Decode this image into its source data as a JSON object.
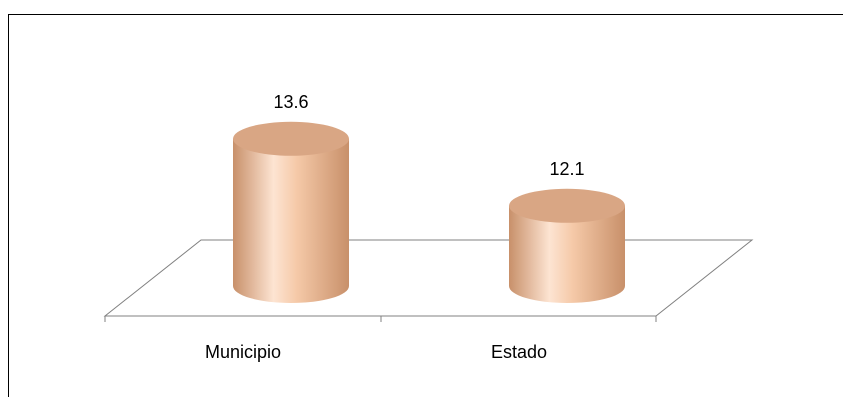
{
  "chart_data": {
    "type": "bar",
    "style": "3d-cylinder",
    "categories": [
      "Municipio",
      "Estado"
    ],
    "values": [
      13.6,
      12.1
    ],
    "data_labels": [
      "13.6",
      "12.1"
    ],
    "title": "",
    "xlabel": "",
    "ylabel": "",
    "ylim": [
      11.2,
      14.2
    ],
    "grid": false,
    "legend": "none",
    "colors": {
      "bar_light": "#fde4d2",
      "bar_mid": "#f5c9a8",
      "bar_dark": "#c8906a",
      "bar_top": "#d9a684",
      "floor_line": "#808080",
      "frame_line": "#000000"
    }
  }
}
